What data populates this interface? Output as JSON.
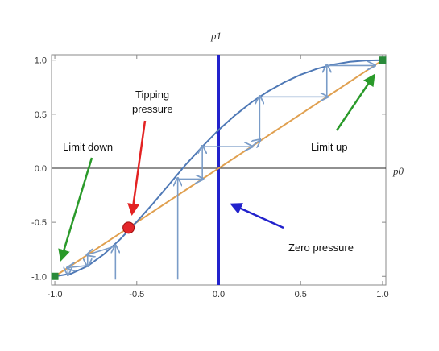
{
  "chart_data": {
    "type": "line",
    "xlabel": "p0",
    "ylabel": "p1",
    "xlim": [
      -1.02,
      1.02
    ],
    "ylim": [
      -1.08,
      1.05
    ],
    "xticks": [
      -1.0,
      -0.5,
      0.0,
      0.5,
      1.0
    ],
    "yticks": [
      -1.0,
      -0.5,
      0.0,
      0.5,
      1.0
    ],
    "xtick_labels": [
      "-1.0",
      "-0.5",
      "0.0",
      "0.5",
      "1.0"
    ],
    "ytick_labels": [
      "-1.0",
      "-0.5",
      "0.0",
      "0.5",
      "1.0"
    ],
    "grid": false,
    "series": [
      {
        "kind": "curve",
        "color": "#4f79b6",
        "x": [
          -1.0,
          -0.9,
          -0.8,
          -0.7,
          -0.6,
          -0.55,
          -0.5,
          -0.4,
          -0.3,
          -0.2,
          -0.1,
          0.0,
          0.1,
          0.2,
          0.3,
          0.4,
          0.5,
          0.6,
          0.7,
          0.8,
          0.9,
          1.0
        ],
        "y": [
          -1.0,
          -0.975,
          -0.905,
          -0.795,
          -0.655,
          -0.575,
          -0.495,
          -0.325,
          -0.145,
          0.035,
          0.2,
          0.355,
          0.49,
          0.61,
          0.71,
          0.795,
          0.865,
          0.92,
          0.96,
          0.985,
          0.997,
          1.0
        ]
      },
      {
        "kind": "identity",
        "color": "#e0a050",
        "x": [
          -1.0,
          1.0
        ],
        "y": [
          -1.0,
          1.0
        ]
      }
    ],
    "cobweb_paths": [
      {
        "color": "#7a9cc8",
        "points": [
          [
            -0.25,
            -1.03
          ],
          [
            -0.25,
            -0.1
          ],
          [
            -0.1,
            -0.1
          ],
          [
            -0.1,
            0.2
          ],
          [
            0.2,
            0.2
          ],
          [
            0.25,
            0.26
          ],
          [
            0.25,
            0.66
          ],
          [
            0.66,
            0.66
          ],
          [
            0.66,
            0.95
          ],
          [
            0.95,
            0.95
          ]
        ]
      },
      {
        "color": "#7a9cc8",
        "points": [
          [
            -0.63,
            -1.03
          ],
          [
            -0.63,
            -0.72
          ],
          [
            -0.8,
            -0.8
          ],
          [
            -0.8,
            -0.9
          ],
          [
            -0.92,
            -0.92
          ],
          [
            -0.92,
            -0.98
          ]
        ]
      }
    ],
    "points": [
      {
        "x": -0.55,
        "y": -0.55,
        "color": "#e3262b",
        "shape": "circle"
      },
      {
        "x": -1.0,
        "y": -1.0,
        "color": "#2a8a3a",
        "shape": "square"
      },
      {
        "x": 1.0,
        "y": 1.0,
        "color": "#2a8a3a",
        "shape": "square"
      }
    ],
    "vertical_line": {
      "x": 0.0,
      "color": "#2222cc"
    },
    "annotations": [
      {
        "text_lines": [
          "Tipping",
          "pressure"
        ],
        "arrow_color": "#e32222",
        "target": [
          -0.55,
          -0.55
        ]
      },
      {
        "text_lines": [
          "Limit down"
        ],
        "arrow_color": "#2a9a2a",
        "target": [
          -1.0,
          -1.0
        ]
      },
      {
        "text_lines": [
          "Limit up"
        ],
        "arrow_color": "#2a9a2a",
        "target": [
          1.0,
          1.0
        ]
      },
      {
        "text_lines": [
          "Zero pressure"
        ],
        "arrow_color": "#2222cc",
        "target": [
          0.0,
          -0.4
        ]
      }
    ]
  }
}
